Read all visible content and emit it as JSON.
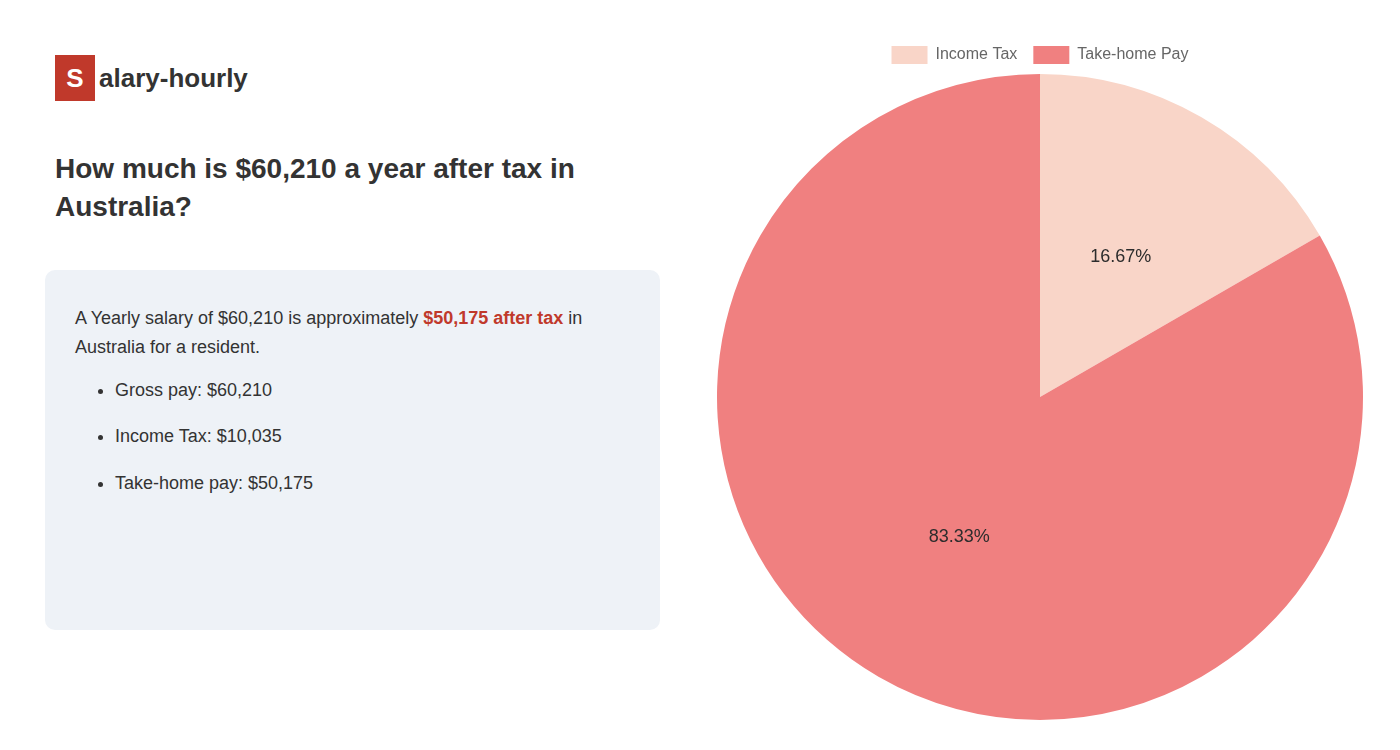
{
  "chart_data": {
    "type": "pie",
    "title": "How much is $60,210 a year after tax in\nAustralia?",
    "categories": [
      "Income Tax",
      "Take-home Pay"
    ],
    "values": [
      16.67,
      83.33
    ],
    "value_labels": [
      "16.67%",
      "83.33%"
    ],
    "colors": [
      "#f9d5c8",
      "#f08080"
    ],
    "data_labels": true,
    "legend": "top",
    "annotations": [
      "S",
      "alary-hourly",
      "A Yearly salary of $60,210 is approximately ",
      "$50,175 after tax",
      " in",
      "Australia for a resident.",
      "Gross pay: $60,210",
      "Income Tax: $10,035",
      "Take-home pay: $50,175"
    ]
  }
}
